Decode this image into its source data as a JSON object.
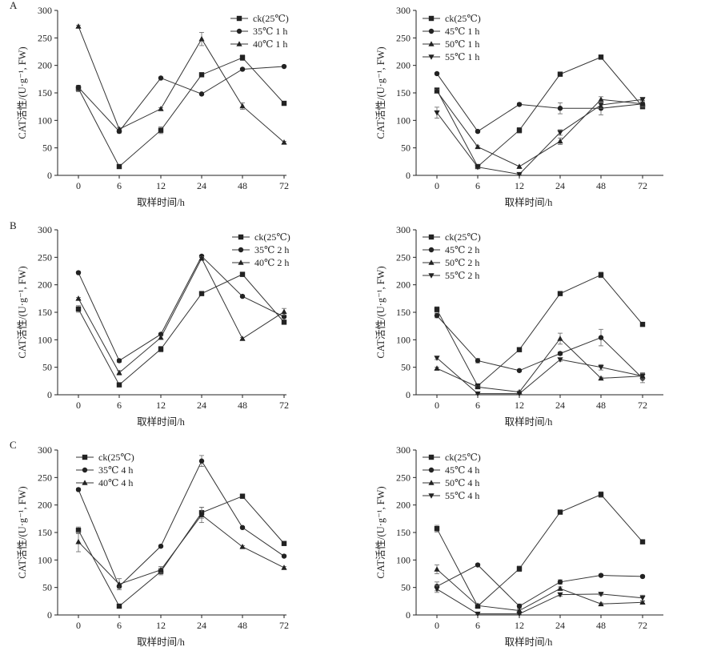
{
  "figure": {
    "panel_labels": [
      "A",
      "B",
      "C"
    ]
  },
  "chart_data": [
    {
      "type": "line",
      "panel": "A",
      "side": "left",
      "xlabel": "取样时间/h",
      "ylabel": "CAT活性/(U·g⁻¹, FW)",
      "categories": [
        "0",
        "6",
        "12",
        "24",
        "48",
        "72"
      ],
      "ylim": [
        0,
        300
      ],
      "yticks": [
        0,
        50,
        100,
        150,
        200,
        250,
        300
      ],
      "legend_position": "top-right",
      "series": [
        {
          "name": "ck(25℃)",
          "marker": "square",
          "values": [
            158,
            16,
            82,
            183,
            214,
            131
          ],
          "errors": [
            6,
            3,
            6,
            2,
            5,
            2
          ]
        },
        {
          "name": "35℃ 1 h",
          "marker": "circle",
          "values": [
            160,
            80,
            177,
            148,
            193,
            198
          ],
          "errors": [
            4,
            3,
            2,
            2,
            2,
            1
          ]
        },
        {
          "name": "40℃ 1 h",
          "marker": "triangle-up",
          "values": [
            271,
            84,
            121,
            248,
            126,
            60
          ],
          "errors": [
            2,
            3,
            2,
            12,
            6,
            2
          ]
        }
      ]
    },
    {
      "type": "line",
      "panel": "A",
      "side": "right",
      "xlabel": "取样时间/h",
      "ylabel": "CAT活性/(U·g⁻¹, FW)",
      "categories": [
        "0",
        "6",
        "12",
        "24",
        "48",
        "72"
      ],
      "ylim": [
        0,
        300
      ],
      "yticks": [
        0,
        50,
        100,
        150,
        200,
        250,
        300
      ],
      "legend_position": "top-left",
      "series": [
        {
          "name": "ck(25℃)",
          "marker": "square",
          "values": [
            155,
            16,
            82,
            184,
            215,
            125
          ],
          "errors": [
            4,
            3,
            5,
            2,
            4,
            4
          ]
        },
        {
          "name": "45℃ 1 h",
          "marker": "circle",
          "values": [
            185,
            80,
            129,
            122,
            122,
            130
          ],
          "errors": [
            2,
            2,
            2,
            10,
            12,
            6
          ]
        },
        {
          "name": "50℃ 1 h",
          "marker": "triangle-up",
          "values": [
            153,
            52,
            16,
            62,
            138,
            130
          ],
          "errors": [
            3,
            2,
            2,
            6,
            5,
            4
          ]
        },
        {
          "name": "55℃ 1 h",
          "marker": "triangle-down",
          "values": [
            114,
            15,
            2,
            78,
            128,
            138
          ],
          "errors": [
            10,
            2,
            1,
            5,
            6,
            4
          ]
        }
      ]
    },
    {
      "type": "line",
      "panel": "B",
      "side": "left",
      "xlabel": "取样时间/h",
      "ylabel": "CAT活性/(U·g⁻¹, FW)",
      "categories": [
        "0",
        "6",
        "12",
        "24",
        "48",
        "72"
      ],
      "ylim": [
        0,
        300
      ],
      "yticks": [
        0,
        50,
        100,
        150,
        200,
        250,
        300
      ],
      "legend_position": "top-right",
      "series": [
        {
          "name": "ck(25℃)",
          "marker": "square",
          "values": [
            156,
            18,
            83,
            184,
            219,
            132
          ],
          "errors": [
            6,
            3,
            5,
            2,
            4,
            2
          ]
        },
        {
          "name": "35℃ 2 h",
          "marker": "circle",
          "values": [
            222,
            62,
            110,
            252,
            179,
            142
          ],
          "errors": [
            2,
            3,
            2,
            2,
            2,
            2
          ]
        },
        {
          "name": "40℃ 2 h",
          "marker": "triangle-up",
          "values": [
            175,
            40,
            104,
            248,
            102,
            151
          ],
          "errors": [
            2,
            4,
            3,
            3,
            2,
            6
          ]
        }
      ]
    },
    {
      "type": "line",
      "panel": "B",
      "side": "right",
      "xlabel": "取样时间/h",
      "ylabel": "CAT活性/(U·g⁻¹, FW)",
      "categories": [
        "0",
        "6",
        "12",
        "24",
        "48",
        "72"
      ],
      "ylim": [
        0,
        300
      ],
      "yticks": [
        0,
        50,
        100,
        150,
        200,
        250,
        300
      ],
      "legend_position": "top-left",
      "series": [
        {
          "name": "ck(25℃)",
          "marker": "square",
          "values": [
            155,
            16,
            82,
            184,
            218,
            128
          ],
          "errors": [
            5,
            3,
            3,
            2,
            5,
            3
          ]
        },
        {
          "name": "45℃ 2 h",
          "marker": "circle",
          "values": [
            144,
            62,
            44,
            75,
            104,
            30
          ],
          "errors": [
            4,
            4,
            2,
            3,
            15,
            8
          ]
        },
        {
          "name": "50℃ 2 h",
          "marker": "triangle-up",
          "values": [
            48,
            14,
            5,
            102,
            30,
            34
          ],
          "errors": [
            2,
            2,
            2,
            10,
            2,
            5
          ]
        },
        {
          "name": "55℃ 2 h",
          "marker": "triangle-down",
          "values": [
            67,
            2,
            2,
            64,
            50,
            34
          ],
          "errors": [
            3,
            1,
            1,
            3,
            5,
            6
          ]
        }
      ]
    },
    {
      "type": "line",
      "panel": "C",
      "side": "left",
      "xlabel": "取样时间/h",
      "ylabel": "CAT活性/(U·g⁻¹, FW)",
      "categories": [
        "0",
        "6",
        "12",
        "24",
        "48",
        "72"
      ],
      "ylim": [
        0,
        300
      ],
      "yticks": [
        0,
        50,
        100,
        150,
        200,
        250,
        300
      ],
      "legend_position": "top-left",
      "series": [
        {
          "name": "ck(25℃)",
          "marker": "square",
          "values": [
            154,
            16,
            79,
            186,
            216,
            130
          ],
          "errors": [
            6,
            3,
            6,
            10,
            4,
            2
          ]
        },
        {
          "name": "35℃ 4 h",
          "marker": "circle",
          "values": [
            228,
            52,
            125,
            280,
            159,
            107
          ],
          "errors": [
            2,
            3,
            2,
            10,
            2,
            2
          ]
        },
        {
          "name": "40℃ 4 h",
          "marker": "triangle-up",
          "values": [
            133,
            56,
            82,
            182,
            124,
            86
          ],
          "errors": [
            18,
            10,
            6,
            14,
            2,
            2
          ]
        }
      ]
    },
    {
      "type": "line",
      "panel": "C",
      "side": "right",
      "xlabel": "取样时间/h",
      "ylabel": "CAT活性/(U·g⁻¹, FW)",
      "categories": [
        "0",
        "6",
        "12",
        "24",
        "48",
        "72"
      ],
      "ylim": [
        0,
        300
      ],
      "yticks": [
        0,
        50,
        100,
        150,
        200,
        250,
        300
      ],
      "legend_position": "top-left",
      "series": [
        {
          "name": "ck(25℃)",
          "marker": "square",
          "values": [
            157,
            16,
            84,
            187,
            219,
            133
          ],
          "errors": [
            6,
            3,
            5,
            2,
            5,
            2
          ]
        },
        {
          "name": "45℃ 4 h",
          "marker": "circle",
          "values": [
            52,
            91,
            16,
            60,
            72,
            70
          ],
          "errors": [
            8,
            2,
            4,
            4,
            2,
            2
          ]
        },
        {
          "name": "50℃ 4 h",
          "marker": "triangle-up",
          "values": [
            83,
            17,
            8,
            48,
            20,
            23
          ],
          "errors": [
            8,
            3,
            2,
            3,
            2,
            2
          ]
        },
        {
          "name": "55℃ 4 h",
          "marker": "triangle-down",
          "values": [
            47,
            2,
            2,
            37,
            38,
            31
          ],
          "errors": [
            6,
            1,
            1,
            3,
            2,
            5
          ]
        }
      ]
    }
  ]
}
